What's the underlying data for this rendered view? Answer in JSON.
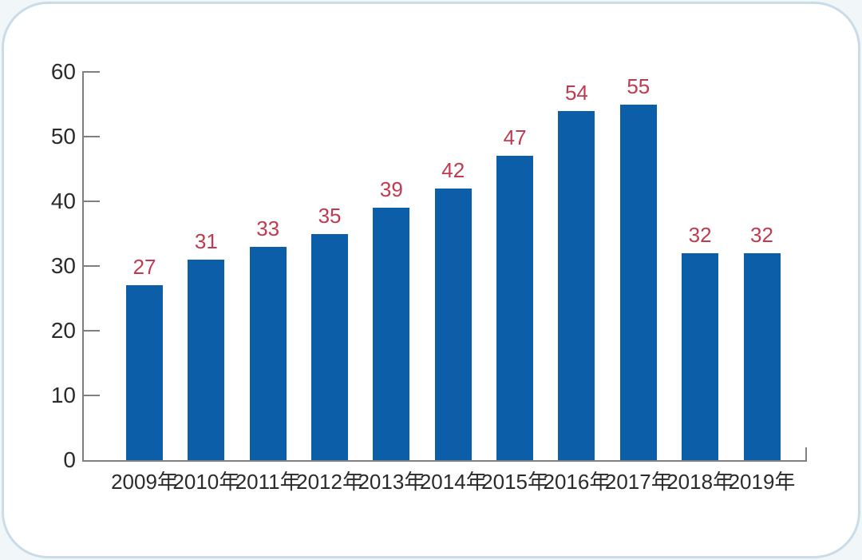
{
  "page": {
    "background_color": "#f1f6f9",
    "card_background": "#ffffff",
    "card_border_color": "#c9dce8"
  },
  "chart_data": {
    "type": "bar",
    "title": "",
    "xlabel": "",
    "ylabel": "",
    "categories": [
      "2009年",
      "2010年",
      "2011年",
      "2012年",
      "2013年",
      "2014年",
      "2015年",
      "2016年",
      "2017年",
      "2018年",
      "2019年"
    ],
    "values": [
      27,
      31,
      33,
      35,
      39,
      42,
      47,
      54,
      55,
      32,
      32
    ],
    "value_labels": [
      "27",
      "31",
      "33",
      "35",
      "39",
      "42",
      "47",
      "54",
      "55",
      "32",
      "32"
    ],
    "ylim": [
      0,
      60
    ],
    "yticks": [
      0,
      10,
      20,
      30,
      40,
      50,
      60
    ],
    "grid": "off",
    "legend": "none",
    "bar_color": "#0d5ea8",
    "value_label_color": "#c13a50",
    "axis_color": "#7f7f7f",
    "tick_label_color": "#2b2b2b"
  }
}
